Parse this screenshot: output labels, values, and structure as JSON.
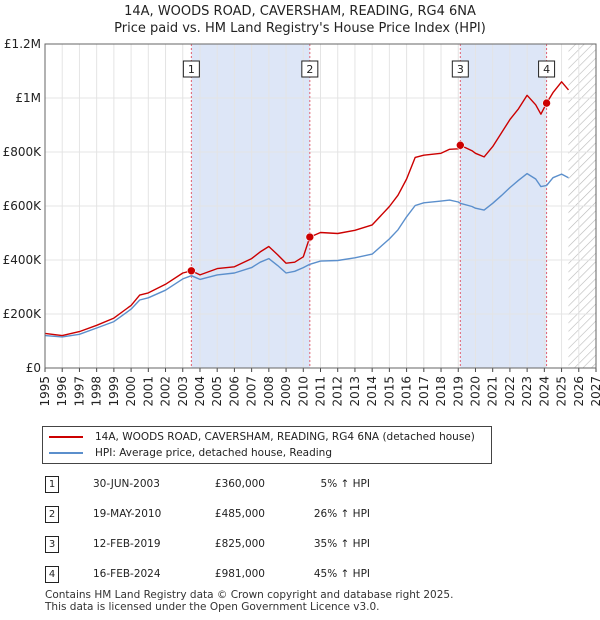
{
  "title_line1": "14A, WOODS ROAD, CAVERSHAM, READING, RG4 6NA",
  "title_line2": "Price paid vs. HM Land Registry's House Price Index (HPI)",
  "colors": {
    "property": "#cc0000",
    "hpi": "#5b8fcc",
    "marker_line": "#e06070",
    "shade": "#dde6f7",
    "grid": "#e4e4e4"
  },
  "chart_data": {
    "type": "line",
    "xlim": [
      1995,
      2027
    ],
    "ylim": [
      0,
      1200000
    ],
    "y_ticks": [
      {
        "value": 0,
        "label": "£0"
      },
      {
        "value": 200000,
        "label": "£200K"
      },
      {
        "value": 400000,
        "label": "£400K"
      },
      {
        "value": 600000,
        "label": "£600K"
      },
      {
        "value": 800000,
        "label": "£800K"
      },
      {
        "value": 1000000,
        "label": "£1M"
      },
      {
        "value": 1200000,
        "label": "£1.2M"
      }
    ],
    "x_ticks": [
      "1995",
      "1996",
      "1997",
      "1998",
      "1999",
      "2000",
      "2001",
      "2002",
      "2003",
      "2004",
      "2005",
      "2006",
      "2007",
      "2008",
      "2009",
      "2010",
      "2011",
      "2012",
      "2013",
      "2014",
      "2015",
      "2016",
      "2017",
      "2018",
      "2019",
      "2020",
      "2021",
      "2022",
      "2023",
      "2024",
      "2025",
      "2026",
      "2027"
    ],
    "forecast_from": 2025.4,
    "shaded_spans": [
      [
        2003.5,
        2010.38
      ],
      [
        2019.12,
        2024.13
      ]
    ],
    "series": [
      {
        "name": "14A, WOODS ROAD, CAVERSHAM, READING, RG4 6NA (detached house)",
        "x": [
          1995,
          1996,
          1997,
          1998,
          1999,
          2000,
          2000.5,
          2001,
          2002,
          2003,
          2003.5,
          2004,
          2005,
          2006,
          2007,
          2007.5,
          2008,
          2008.5,
          2009,
          2009.5,
          2010,
          2010.38,
          2011,
          2012,
          2013,
          2014,
          2015,
          2015.5,
          2016,
          2016.5,
          2017,
          2018,
          2018.5,
          2019,
          2019.12,
          2019.8,
          2020,
          2020.5,
          2021,
          2021.5,
          2022,
          2022.5,
          2023,
          2023.5,
          2023.8,
          2024.13,
          2024.5,
          2025,
          2025.4
        ],
        "y": [
          128000,
          120000,
          135000,
          158000,
          185000,
          232000,
          270000,
          278000,
          310000,
          352000,
          360000,
          345000,
          368000,
          375000,
          405000,
          430000,
          450000,
          420000,
          388000,
          392000,
          412000,
          485000,
          502000,
          498000,
          510000,
          530000,
          598000,
          640000,
          700000,
          780000,
          788000,
          795000,
          810000,
          812000,
          825000,
          805000,
          795000,
          782000,
          820000,
          870000,
          920000,
          960000,
          1010000,
          975000,
          940000,
          981000,
          1020000,
          1060000,
          1030000
        ]
      },
      {
        "name": "HPI: Average price, detached house, Reading",
        "x": [
          1995,
          1996,
          1997,
          1998,
          1999,
          2000,
          2000.5,
          2001,
          2002,
          2003,
          2003.5,
          2004,
          2005,
          2006,
          2007,
          2007.5,
          2008,
          2008.5,
          2009,
          2009.5,
          2010,
          2010.38,
          2011,
          2012,
          2013,
          2014,
          2015,
          2015.5,
          2016,
          2016.5,
          2017,
          2018,
          2018.5,
          2019,
          2019.12,
          2019.8,
          2020,
          2020.5,
          2021,
          2021.5,
          2022,
          2022.5,
          2023,
          2023.5,
          2023.8,
          2024.13,
          2024.5,
          2025,
          2025.4
        ],
        "y": [
          120000,
          115000,
          125000,
          148000,
          172000,
          218000,
          252000,
          260000,
          288000,
          330000,
          342000,
          328000,
          345000,
          352000,
          372000,
          392000,
          405000,
          380000,
          352000,
          358000,
          372000,
          384000,
          396000,
          398000,
          408000,
          422000,
          478000,
          512000,
          560000,
          602000,
          612000,
          618000,
          622000,
          615000,
          610000,
          598000,
          592000,
          585000,
          610000,
          638000,
          668000,
          695000,
          720000,
          700000,
          672000,
          676000,
          705000,
          718000,
          705000
        ]
      }
    ],
    "sales": [
      {
        "num": "1",
        "date": "30-JUN-2003",
        "x": 2003.5,
        "price": 360000,
        "price_label": "£360,000",
        "hpi": "5% ↑ HPI"
      },
      {
        "num": "2",
        "date": "19-MAY-2010",
        "x": 2010.38,
        "price": 485000,
        "price_label": "£485,000",
        "hpi": "26% ↑ HPI"
      },
      {
        "num": "3",
        "date": "12-FEB-2019",
        "x": 2019.12,
        "price": 825000,
        "price_label": "£825,000",
        "hpi": "35% ↑ HPI"
      },
      {
        "num": "4",
        "date": "16-FEB-2024",
        "x": 2024.13,
        "price": 981000,
        "price_label": "£981,000",
        "hpi": "45% ↑ HPI"
      }
    ]
  },
  "footer_line1": "Contains HM Land Registry data © Crown copyright and database right 2025.",
  "footer_line2": "This data is licensed under the Open Government Licence v3.0."
}
